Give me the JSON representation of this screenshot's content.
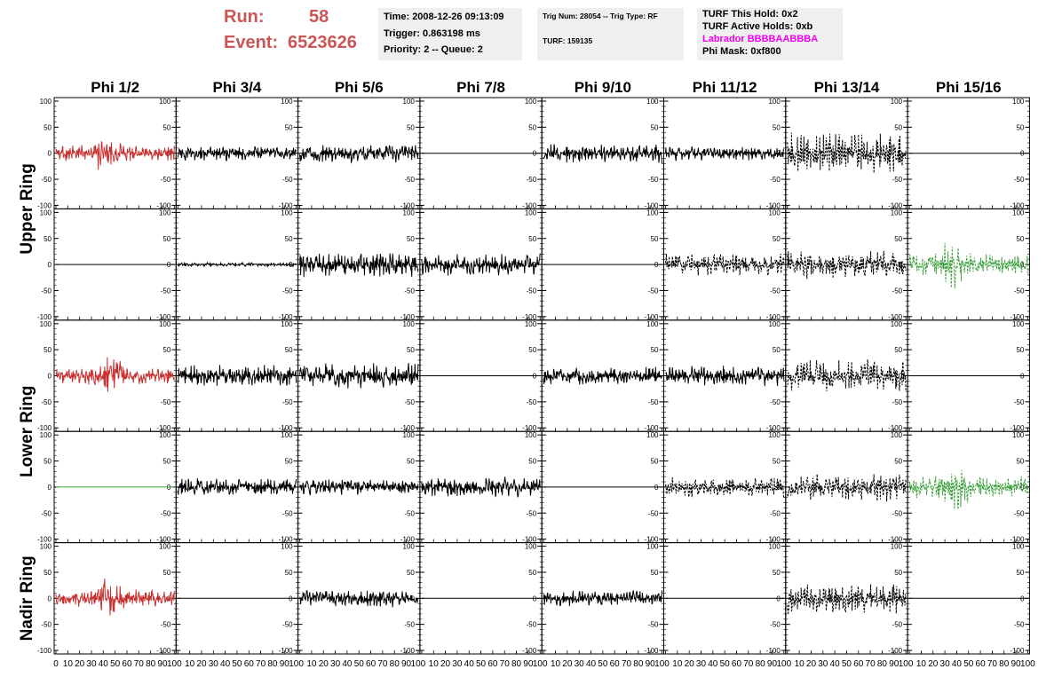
{
  "header": {
    "run_label": "Run:",
    "run_value": "58",
    "event_label": "Event:",
    "event_value": "6523626",
    "time_line": "Time: 2008-12-26 09:13:09",
    "trigger_line": "Trigger: 0.863198 ms",
    "priority_line": "Priority: 2 -- Queue: 2",
    "trig_line": "Trig Num: 28054 -- Trig Type: RF",
    "turf_line": "TURF: 159135",
    "turf_hold_line": "TURF This Hold: 0x2",
    "turf_active_line": "TURF Active Holds: 0xb",
    "labrador_line": "Labrador BBBBAABBBA",
    "phi_mask_line": "Phi Mask: 0xf800"
  },
  "colors": {
    "title_red": "#cc5555",
    "trace_red": "#c83030",
    "trace_black": "#000000",
    "trace_green": "#3aa03a",
    "labrador_magenta": "#ee00ee",
    "info_bg": "#efefef"
  },
  "chart_data": {
    "type": "line",
    "columns": [
      "Phi 1/2",
      "Phi 3/4",
      "Phi 5/6",
      "Phi 7/8",
      "Phi 9/10",
      "Phi 11/12",
      "Phi 13/14",
      "Phi 15/16"
    ],
    "ring_labels": [
      {
        "label": "Upper Ring",
        "rows": [
          0,
          1
        ]
      },
      {
        "label": "Lower Ring",
        "rows": [
          2,
          3
        ]
      },
      {
        "label": "Nadir Ring",
        "rows": [
          4,
          4
        ]
      }
    ],
    "xlim": [
      0,
      100
    ],
    "ylim": [
      -100,
      100
    ],
    "x_ticks": [
      0,
      10,
      20,
      30,
      40,
      50,
      60,
      70,
      80,
      90,
      100
    ],
    "y_ticks": [
      -100,
      -50,
      0,
      50,
      100
    ],
    "panels": [
      [
        {
          "color": "red",
          "style": "solid",
          "amplitude": 30,
          "burst": 42
        },
        {
          "color": "black",
          "style": "solid",
          "amplitude": 15
        },
        {
          "color": "black",
          "style": "solid",
          "amplitude": 18
        },
        {
          "color": "black",
          "style": "flat",
          "amplitude": 0
        },
        {
          "color": "black",
          "style": "solid",
          "amplitude": 20
        },
        {
          "color": "black",
          "style": "solid",
          "amplitude": 15
        },
        {
          "color": "black",
          "style": "dashed",
          "amplitude": 40
        },
        {
          "color": "black",
          "style": "flat",
          "amplitude": 0
        }
      ],
      [
        {
          "color": "black",
          "style": "flat",
          "amplitude": 0
        },
        {
          "color": "black",
          "style": "solid",
          "amplitude": 4
        },
        {
          "color": "black",
          "style": "solid",
          "amplitude": 25
        },
        {
          "color": "black",
          "style": "solid",
          "amplitude": 22
        },
        {
          "color": "black",
          "style": "flat",
          "amplitude": 0
        },
        {
          "color": "black",
          "style": "dashed",
          "amplitude": 22
        },
        {
          "color": "black",
          "style": "dashed",
          "amplitude": 30
        },
        {
          "color": "green",
          "style": "dashed",
          "amplitude": 38,
          "burst": 35
        }
      ],
      [
        {
          "color": "red",
          "style": "solid",
          "amplitude": 32,
          "burst": 47
        },
        {
          "color": "black",
          "style": "solid",
          "amplitude": 22
        },
        {
          "color": "black",
          "style": "solid",
          "amplitude": 25
        },
        {
          "color": "black",
          "style": "flat",
          "amplitude": 0
        },
        {
          "color": "black",
          "style": "solid",
          "amplitude": 18
        },
        {
          "color": "black",
          "style": "solid",
          "amplitude": 20
        },
        {
          "color": "black",
          "style": "dashed",
          "amplitude": 32
        },
        {
          "color": "black",
          "style": "flat",
          "amplitude": 0
        }
      ],
      [
        {
          "color": "green",
          "style": "flat",
          "amplitude": 0
        },
        {
          "color": "black",
          "style": "solid",
          "amplitude": 18
        },
        {
          "color": "black",
          "style": "solid",
          "amplitude": 16
        },
        {
          "color": "black",
          "style": "solid",
          "amplitude": 20
        },
        {
          "color": "black",
          "style": "flat",
          "amplitude": 0
        },
        {
          "color": "black",
          "style": "dashed",
          "amplitude": 20
        },
        {
          "color": "black",
          "style": "dashed",
          "amplitude": 28
        },
        {
          "color": "green",
          "style": "dashed",
          "amplitude": 40,
          "burst": 40
        }
      ],
      [
        {
          "color": "red",
          "style": "solid",
          "amplitude": 32,
          "burst": 45
        },
        {
          "color": "black",
          "style": "flat",
          "amplitude": 0
        },
        {
          "color": "black",
          "style": "solid",
          "amplitude": 18
        },
        {
          "color": "black",
          "style": "flat",
          "amplitude": 0
        },
        {
          "color": "black",
          "style": "solid",
          "amplitude": 16
        },
        {
          "color": "black",
          "style": "flat",
          "amplitude": 0
        },
        {
          "color": "black",
          "style": "dashed",
          "amplitude": 30
        },
        {
          "color": "black",
          "style": "flat",
          "amplitude": 0
        }
      ]
    ]
  }
}
